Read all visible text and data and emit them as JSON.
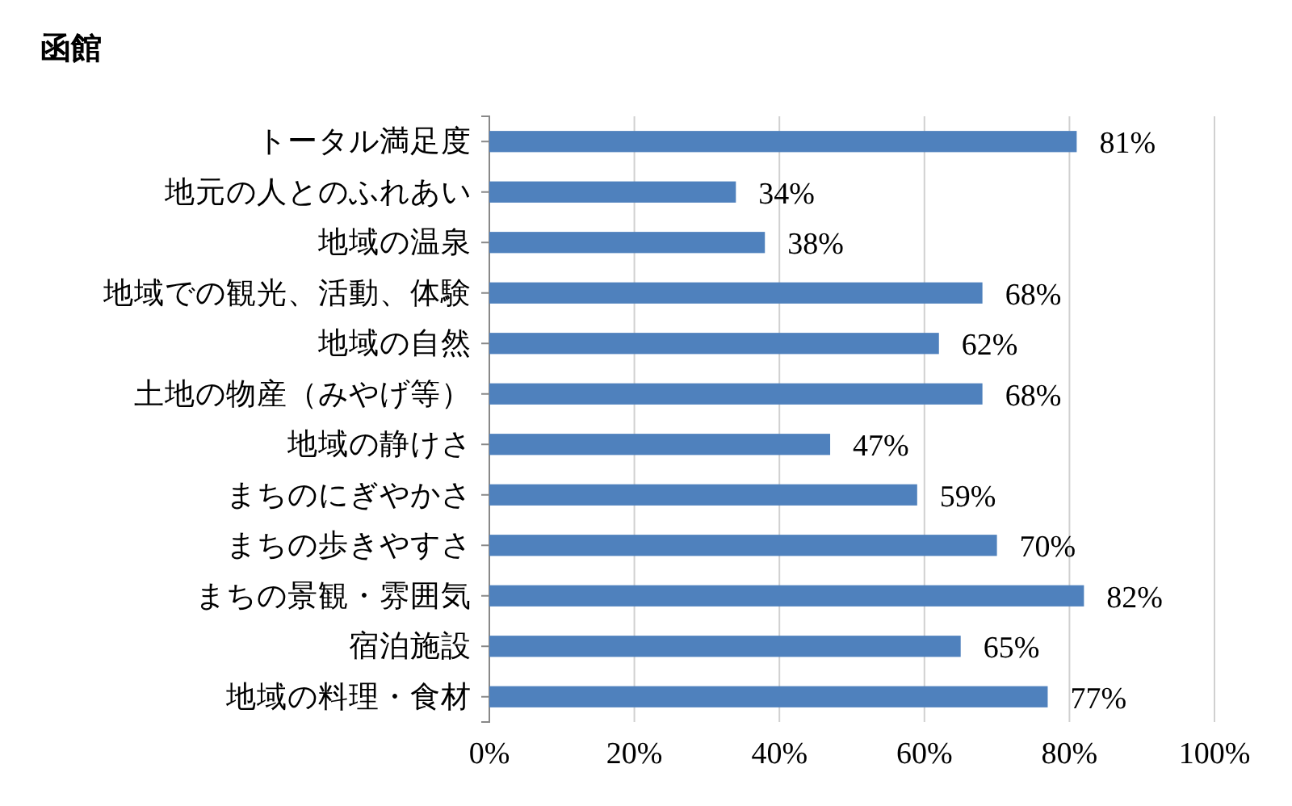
{
  "chart_data": {
    "type": "bar",
    "orientation": "horizontal",
    "title": "函館",
    "categories": [
      "トータル満足度",
      "地元の人とのふれあい",
      "地域の温泉",
      "地域での観光、活動、体験",
      "地域の自然",
      "土地の物産（みやげ等）",
      "地域の静けさ",
      "まちのにぎやかさ",
      "まちの歩きやすさ",
      "まちの景観・雰囲気",
      "宿泊施設",
      "地域の料理・食材"
    ],
    "values": [
      81,
      34,
      38,
      68,
      62,
      68,
      47,
      59,
      70,
      82,
      65,
      77
    ],
    "value_labels": [
      "81%",
      "34%",
      "38%",
      "68%",
      "62%",
      "68%",
      "47%",
      "59%",
      "70%",
      "82%",
      "65%",
      "77%"
    ],
    "color": "#4f81bd",
    "xlim": [
      0,
      100
    ],
    "xticks": [
      {
        "value": 0,
        "label": "0%"
      },
      {
        "value": 20,
        "label": "20%"
      },
      {
        "value": 40,
        "label": "40%"
      },
      {
        "value": 60,
        "label": "60%"
      },
      {
        "value": 80,
        "label": "80%"
      },
      {
        "value": 100,
        "label": "100%"
      }
    ],
    "grid": "x"
  }
}
